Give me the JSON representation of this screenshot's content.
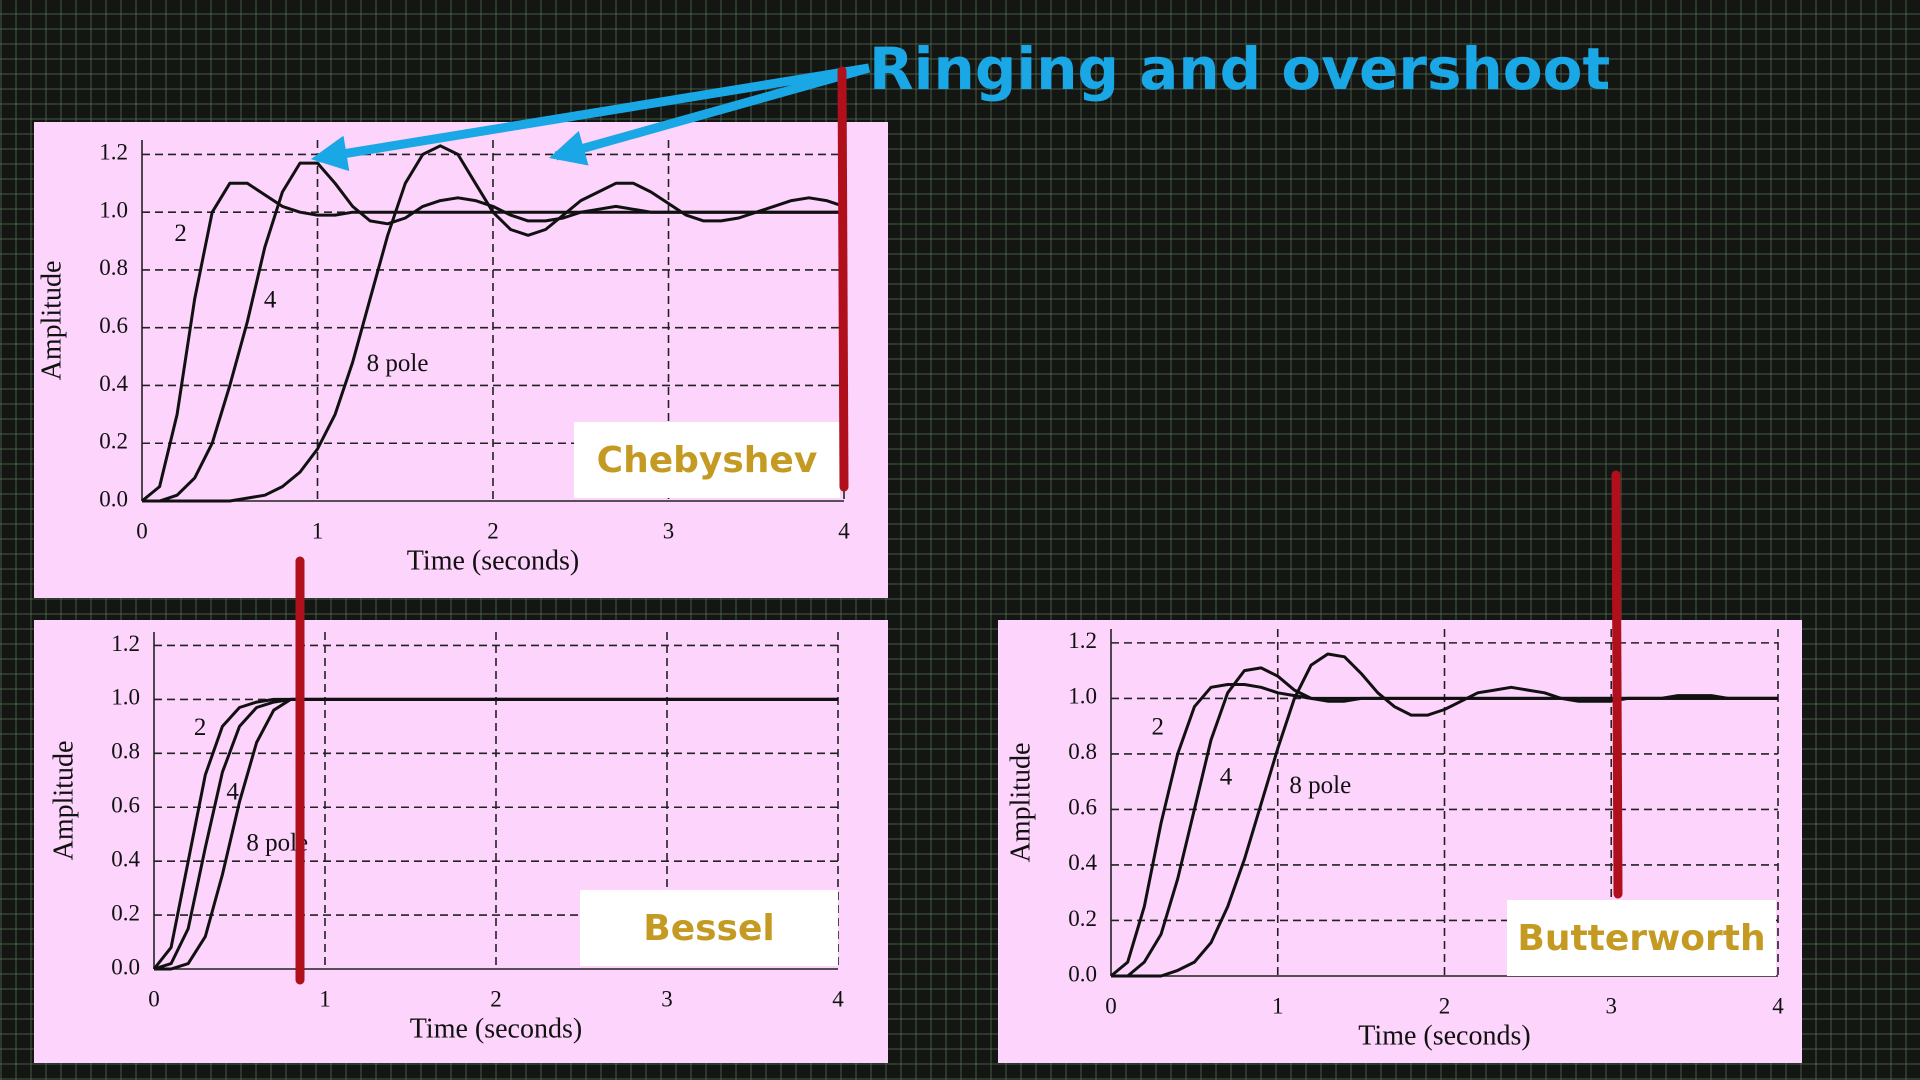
{
  "chart_data": [
    {
      "type": "line",
      "title": "Chebyshev",
      "annotation": "Ringing and overshoot",
      "x_label": "Time (seconds)",
      "y_label": "Amplitude",
      "x": [
        0,
        0.1,
        0.2,
        0.3,
        0.4,
        0.5,
        0.6,
        0.7,
        0.8,
        0.9,
        1,
        1.1,
        1.2,
        1.3,
        1.4,
        1.5,
        1.6,
        1.7,
        1.8,
        1.9,
        2,
        2.1,
        2.2,
        2.3,
        2.4,
        2.5,
        2.6,
        2.7,
        2.8,
        2.9,
        3,
        3.1,
        3.2,
        3.3,
        3.4,
        3.5,
        3.6,
        3.7,
        3.8,
        3.9,
        4
      ],
      "series": [
        {
          "name": "2",
          "color": "#111111",
          "values": [
            0,
            0.05,
            0.3,
            0.7,
            1.0,
            1.1,
            1.1,
            1.06,
            1.02,
            1.0,
            0.99,
            0.99,
            1,
            1,
            1,
            1,
            1,
            1,
            1,
            1,
            1,
            1,
            1,
            1,
            1,
            1,
            1,
            1,
            1,
            1,
            1,
            1,
            1,
            1,
            1,
            1,
            1,
            1,
            1,
            1,
            1
          ]
        },
        {
          "name": "4",
          "color": "#111111",
          "values": [
            0,
            0,
            0.02,
            0.08,
            0.2,
            0.4,
            0.62,
            0.88,
            1.07,
            1.17,
            1.17,
            1.1,
            1.02,
            0.97,
            0.96,
            0.98,
            1.02,
            1.04,
            1.05,
            1.04,
            1.02,
            0.99,
            0.97,
            0.97,
            0.98,
            1.0,
            1.01,
            1.02,
            1.01,
            1,
            1,
            1,
            1,
            1,
            1,
            1,
            1,
            1,
            1,
            1,
            1
          ]
        },
        {
          "name": "8 pole",
          "color": "#111111",
          "values": [
            0,
            0,
            0,
            0,
            0,
            0,
            0.01,
            0.02,
            0.05,
            0.1,
            0.18,
            0.3,
            0.48,
            0.7,
            0.92,
            1.1,
            1.2,
            1.23,
            1.2,
            1.1,
            1.0,
            0.94,
            0.92,
            0.94,
            0.99,
            1.04,
            1.07,
            1.1,
            1.1,
            1.07,
            1.03,
            0.99,
            0.97,
            0.97,
            0.98,
            1.0,
            1.02,
            1.04,
            1.05,
            1.04,
            1.02
          ]
        }
      ],
      "xlim": [
        0,
        4
      ],
      "ylim": [
        0,
        1.25
      ],
      "xticks": [
        0,
        1,
        2,
        3,
        4
      ],
      "yticks": [
        {
          "value": 0,
          "label": "0.0"
        },
        0.2,
        0.4,
        0.6,
        0.8,
        {
          "value": 1,
          "label": "1.0"
        },
        1.2
      ],
      "grid": true
    },
    {
      "type": "line",
      "title": "Bessel",
      "x_label": "Time (seconds)",
      "y_label": "Amplitude",
      "x": [
        0,
        0.1,
        0.2,
        0.3,
        0.4,
        0.5,
        0.6,
        0.7,
        0.8,
        0.9,
        1,
        1.1,
        1.2,
        1.3,
        1.4,
        1.5,
        1.6,
        1.7,
        1.8,
        1.9,
        2,
        2.1,
        2.2,
        2.3,
        2.4,
        2.5,
        2.6,
        2.7,
        2.8,
        2.9,
        3,
        3.1,
        3.2,
        3.3,
        3.4,
        3.5,
        3.6,
        3.7,
        3.8,
        3.9,
        4
      ],
      "series": [
        {
          "name": "2",
          "color": "#111111",
          "values": [
            0,
            0.08,
            0.4,
            0.72,
            0.9,
            0.97,
            0.99,
            1,
            1,
            1,
            1,
            1,
            1,
            1,
            1,
            1,
            1,
            1,
            1,
            1,
            1,
            1,
            1,
            1,
            1,
            1,
            1,
            1,
            1,
            1,
            1,
            1,
            1,
            1,
            1,
            1,
            1,
            1,
            1,
            1,
            1
          ]
        },
        {
          "name": "4",
          "color": "#111111",
          "values": [
            0,
            0.02,
            0.15,
            0.45,
            0.73,
            0.9,
            0.97,
            0.99,
            1,
            1,
            1,
            1,
            1,
            1,
            1,
            1,
            1,
            1,
            1,
            1,
            1,
            1,
            1,
            1,
            1,
            1,
            1,
            1,
            1,
            1,
            1,
            1,
            1,
            1,
            1,
            1,
            1,
            1,
            1,
            1,
            1
          ]
        },
        {
          "name": "8 pole",
          "color": "#111111",
          "values": [
            0,
            0,
            0.02,
            0.12,
            0.35,
            0.62,
            0.84,
            0.96,
            1,
            1,
            1,
            1,
            1,
            1,
            1,
            1,
            1,
            1,
            1,
            1,
            1,
            1,
            1,
            1,
            1,
            1,
            1,
            1,
            1,
            1,
            1,
            1,
            1,
            1,
            1,
            1,
            1,
            1,
            1,
            1,
            1
          ]
        }
      ],
      "xlim": [
        0,
        4
      ],
      "ylim": [
        0,
        1.25
      ],
      "xticks": [
        0,
        1,
        2,
        3,
        4
      ],
      "yticks": [
        {
          "value": 0,
          "label": "0.0"
        },
        0.2,
        0.4,
        0.6,
        0.8,
        {
          "value": 1,
          "label": "1.0"
        },
        1.2
      ],
      "grid": true
    },
    {
      "type": "line",
      "title": "Butterworth",
      "x_label": "Time (seconds)",
      "y_label": "Amplitude",
      "x": [
        0,
        0.1,
        0.2,
        0.3,
        0.4,
        0.5,
        0.6,
        0.7,
        0.8,
        0.9,
        1,
        1.1,
        1.2,
        1.3,
        1.4,
        1.5,
        1.6,
        1.7,
        1.8,
        1.9,
        2,
        2.1,
        2.2,
        2.3,
        2.4,
        2.5,
        2.6,
        2.7,
        2.8,
        2.9,
        3,
        3.1,
        3.2,
        3.3,
        3.4,
        3.5,
        3.6,
        3.7,
        3.8,
        3.9,
        4
      ],
      "series": [
        {
          "name": "2",
          "color": "#111111",
          "values": [
            0,
            0.05,
            0.25,
            0.55,
            0.8,
            0.97,
            1.04,
            1.05,
            1.05,
            1.04,
            1.02,
            1.01,
            1,
            1,
            1,
            1,
            1,
            1,
            1,
            1,
            1,
            1,
            1,
            1,
            1,
            1,
            1,
            1,
            1,
            1,
            1,
            1,
            1,
            1,
            1,
            1,
            1,
            1,
            1,
            1,
            1
          ]
        },
        {
          "name": "4",
          "color": "#111111",
          "values": [
            0,
            0,
            0.05,
            0.15,
            0.35,
            0.6,
            0.85,
            1.02,
            1.1,
            1.11,
            1.08,
            1.03,
            1.0,
            0.99,
            0.99,
            1,
            1,
            1,
            1,
            1,
            1,
            1,
            1,
            1,
            1,
            1,
            1,
            1,
            1,
            1,
            1,
            1,
            1,
            1,
            1,
            1,
            1,
            1,
            1,
            1,
            1
          ]
        },
        {
          "name": "8 pole",
          "color": "#111111",
          "values": [
            0,
            0,
            0,
            0,
            0.02,
            0.05,
            0.12,
            0.25,
            0.42,
            0.62,
            0.82,
            1.0,
            1.12,
            1.16,
            1.15,
            1.09,
            1.02,
            0.97,
            0.94,
            0.94,
            0.96,
            0.99,
            1.02,
            1.03,
            1.04,
            1.03,
            1.02,
            1.0,
            0.99,
            0.99,
            0.99,
            1,
            1,
            1,
            1.01,
            1.01,
            1.01,
            1,
            1,
            1,
            1
          ]
        }
      ],
      "xlim": [
        0,
        4
      ],
      "ylim": [
        0,
        1.25
      ],
      "xticks": [
        0,
        1,
        2,
        3,
        4
      ],
      "yticks": [
        {
          "value": 0,
          "label": "0.0"
        },
        0.2,
        0.4,
        0.6,
        0.8,
        {
          "value": 1,
          "label": "1.0"
        },
        1.2
      ],
      "grid": true
    }
  ]
}
